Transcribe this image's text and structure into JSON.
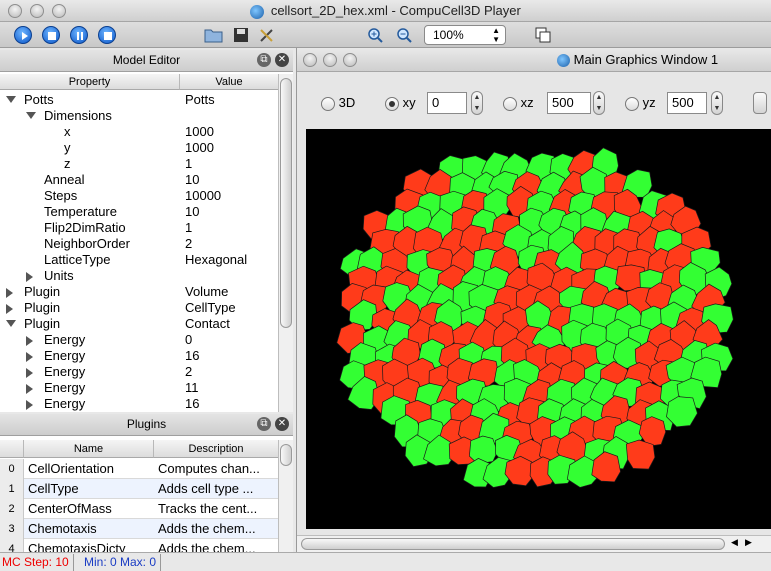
{
  "window": {
    "title": "cellsort_2D_hex.xml - CompuCell3D Player"
  },
  "toolbar": {
    "zoom_value": "100%"
  },
  "model_editor": {
    "title": "Model Editor",
    "col_property": "Property",
    "col_value": "Value",
    "rows": [
      {
        "property": "Potts",
        "value": "Potts",
        "indent": 0,
        "expander": "down"
      },
      {
        "property": "Dimensions",
        "value": "",
        "indent": 1,
        "expander": "down"
      },
      {
        "property": "x",
        "value": "1000",
        "indent": 2,
        "expander": ""
      },
      {
        "property": "y",
        "value": "1000",
        "indent": 2,
        "expander": ""
      },
      {
        "property": "z",
        "value": "1",
        "indent": 2,
        "expander": ""
      },
      {
        "property": "Anneal",
        "value": "10",
        "indent": 1,
        "expander": ""
      },
      {
        "property": "Steps",
        "value": "10000",
        "indent": 1,
        "expander": ""
      },
      {
        "property": "Temperature",
        "value": "10",
        "indent": 1,
        "expander": ""
      },
      {
        "property": "Flip2DimRatio",
        "value": "1",
        "indent": 1,
        "expander": ""
      },
      {
        "property": "NeighborOrder",
        "value": "2",
        "indent": 1,
        "expander": ""
      },
      {
        "property": "LatticeType",
        "value": "Hexagonal",
        "indent": 1,
        "expander": ""
      },
      {
        "property": "Units",
        "value": "",
        "indent": 1,
        "expander": "right"
      },
      {
        "property": "Plugin",
        "value": "Volume",
        "indent": 0,
        "expander": "right"
      },
      {
        "property": "Plugin",
        "value": "CellType",
        "indent": 0,
        "expander": "right"
      },
      {
        "property": "Plugin",
        "value": "Contact",
        "indent": 0,
        "expander": "down"
      },
      {
        "property": "Energy",
        "value": "0",
        "indent": 1,
        "expander": "right"
      },
      {
        "property": "Energy",
        "value": "16",
        "indent": 1,
        "expander": "right"
      },
      {
        "property": "Energy",
        "value": "2",
        "indent": 1,
        "expander": "right"
      },
      {
        "property": "Energy",
        "value": "11",
        "indent": 1,
        "expander": "right"
      },
      {
        "property": "Energy",
        "value": "16",
        "indent": 1,
        "expander": "right"
      }
    ]
  },
  "plugins": {
    "title": "Plugins",
    "col_name": "Name",
    "col_description": "Description",
    "rows": [
      {
        "n": "0",
        "name": "CellOrientation",
        "desc": "Computes chan..."
      },
      {
        "n": "1",
        "name": "CellType",
        "desc": "Adds cell type ..."
      },
      {
        "n": "2",
        "name": "CenterOfMass",
        "desc": "Tracks the cent..."
      },
      {
        "n": "3",
        "name": "Chemotaxis",
        "desc": "Adds the chem..."
      },
      {
        "n": "4",
        "name": "ChemotaxisDicty",
        "desc": "Adds the chem..."
      }
    ]
  },
  "graphics": {
    "title": "Main Graphics Window 1",
    "label_3d": "3D",
    "label_xy": "xy",
    "xy_value": "0",
    "label_xz": "xz",
    "xz_value": "500",
    "label_yz": "yz",
    "yz_value": "500",
    "colors": {
      "background": "#000000",
      "type_red": "#ff3b1a",
      "type_green": "#33ff33"
    }
  },
  "status": {
    "mc_step_label": "MC Step: 10",
    "minmax_label": "Min: 0 Max: 0"
  }
}
